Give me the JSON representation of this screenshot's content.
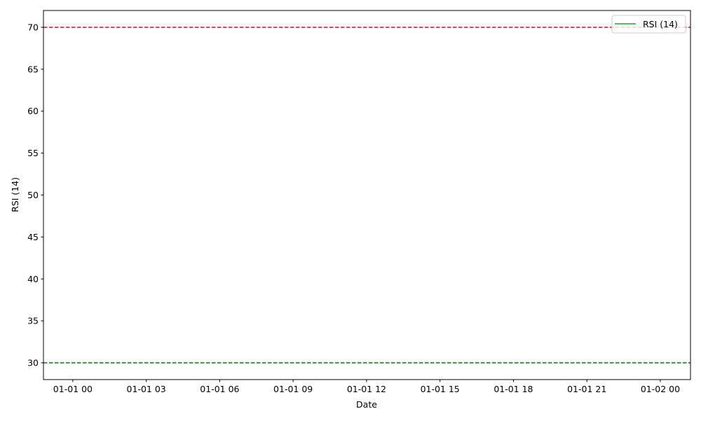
{
  "chart_data": {
    "type": "line",
    "title": "",
    "xlabel": "Date",
    "ylabel": "RSI (14)",
    "ylim": [
      28,
      72
    ],
    "xlim": [
      "12-31 22:48",
      "01-02 01:14"
    ],
    "yticks": [
      30,
      35,
      40,
      45,
      50,
      55,
      60,
      65,
      70
    ],
    "xticks": [
      "01-01 00",
      "01-01 03",
      "01-01 06",
      "01-01 09",
      "01-01 12",
      "01-01 15",
      "01-01 18",
      "01-01 21",
      "01-02 00"
    ],
    "grid": false,
    "legend_placement": "upper right",
    "series": [
      {
        "name": "RSI (14)",
        "color": "#2ca02c",
        "values": []
      }
    ],
    "reference_lines": [
      {
        "y": 70,
        "color": "#ff0000",
        "style": "dashed"
      },
      {
        "y": 30,
        "color": "#008000",
        "style": "dashed"
      }
    ]
  }
}
